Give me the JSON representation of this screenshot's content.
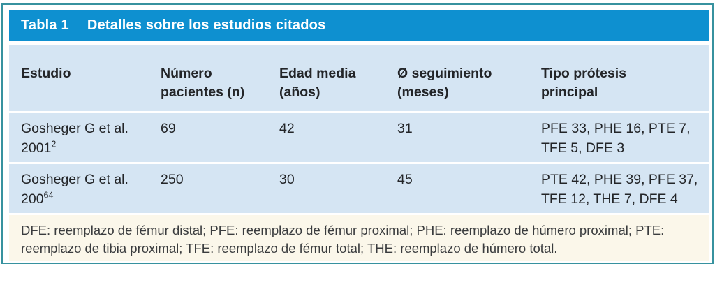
{
  "table": {
    "title": {
      "number": "Tabla 1",
      "caption": "Detalles sobre los estudios citados"
    },
    "columns": [
      {
        "line1": "Estudio",
        "line2": ""
      },
      {
        "line1": "Número",
        "line2": "pacientes (n)"
      },
      {
        "line1": "Edad media",
        "line2": "(años)"
      },
      {
        "line1": "Ø seguimiento",
        "line2": "(meses)"
      },
      {
        "line1": "Tipo prótesis",
        "line2": "principal"
      }
    ],
    "rows": [
      {
        "study_line1": "Gosheger G et al.",
        "study_year": "2001",
        "study_ref": "2",
        "patients": "69",
        "age": "42",
        "followup": "31",
        "prosthesis": "PFE 33, PHE 16, PTE 7, TFE 5, DFE 3"
      },
      {
        "study_line1": "Gosheger G et al.",
        "study_year": "200",
        "study_ref": "64",
        "patients": "250",
        "age": "30",
        "followup": "45",
        "prosthesis": "PTE 42, PHE 39, PFE 37, TFE 12, THE 7, DFE 4"
      }
    ],
    "footnote_lines": [
      "DFE: reemplazo de fémur distal; PFE: reemplazo de fémur proximal; PHE: reemplazo de húmero proximal; PTE:",
      "reemplazo de tibia proximal; TFE: reemplazo de fémur total; THE: reemplazo de húmero total."
    ]
  },
  "colors": {
    "title_bar": "#0e90d0",
    "title_text": "#ffffff",
    "cell_bg": "#d5e5f3",
    "footnote_bg": "#fbf7ea",
    "frame_border": "#37929f",
    "body_text": "#232528",
    "footnote_text": "#3a3c3e"
  }
}
